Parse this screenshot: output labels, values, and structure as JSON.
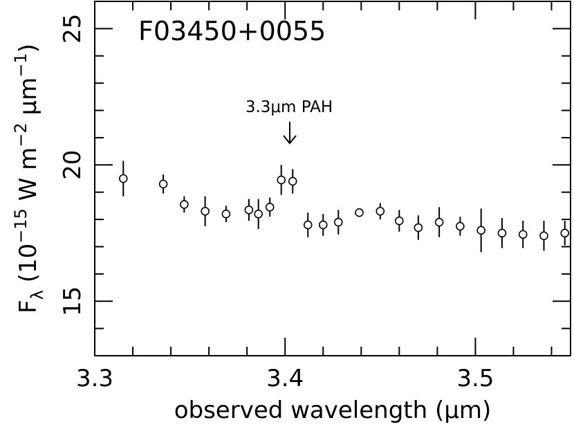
{
  "chart_data": {
    "type": "scatter",
    "title": "F03450+0055",
    "xlabel": "observed wavelength (μm)",
    "ylabel": "F_λ (10^-15 W m^-2 μm^-1)",
    "xlim": [
      3.3,
      3.55
    ],
    "ylim": [
      13,
      26
    ],
    "x_major_ticks": [
      3.3,
      3.4,
      3.5
    ],
    "x_tick_labels": [
      "3.3",
      "3.4",
      "3.5"
    ],
    "y_major_ticks": [
      15,
      20,
      25
    ],
    "y_tick_labels": [
      "15",
      "20",
      "25"
    ],
    "grid": false,
    "annotation": {
      "text": "3.3μm PAH",
      "x": 3.404,
      "y": 20.9
    },
    "points": [
      {
        "x": 3.315,
        "y": 19.5,
        "err": 0.65
      },
      {
        "x": 3.336,
        "y": 19.3,
        "err": 0.35
      },
      {
        "x": 3.347,
        "y": 18.55,
        "err": 0.3
      },
      {
        "x": 3.358,
        "y": 18.3,
        "err": 0.55
      },
      {
        "x": 3.369,
        "y": 18.2,
        "err": 0.3
      },
      {
        "x": 3.381,
        "y": 18.35,
        "err": 0.4
      },
      {
        "x": 3.386,
        "y": 18.2,
        "err": 0.55
      },
      {
        "x": 3.392,
        "y": 18.45,
        "err": 0.35
      },
      {
        "x": 3.398,
        "y": 19.45,
        "err": 0.55
      },
      {
        "x": 3.404,
        "y": 19.4,
        "err": 0.45
      },
      {
        "x": 3.412,
        "y": 17.8,
        "err": 0.45
      },
      {
        "x": 3.42,
        "y": 17.8,
        "err": 0.4
      },
      {
        "x": 3.428,
        "y": 17.9,
        "err": 0.45
      },
      {
        "x": 3.439,
        "y": 18.25,
        "err": 0.15
      },
      {
        "x": 3.45,
        "y": 18.3,
        "err": 0.3
      },
      {
        "x": 3.46,
        "y": 17.95,
        "err": 0.4
      },
      {
        "x": 3.47,
        "y": 17.7,
        "err": 0.45
      },
      {
        "x": 3.481,
        "y": 17.9,
        "err": 0.55
      },
      {
        "x": 3.492,
        "y": 17.75,
        "err": 0.35
      },
      {
        "x": 3.503,
        "y": 17.6,
        "err": 0.8
      },
      {
        "x": 3.514,
        "y": 17.5,
        "err": 0.55
      },
      {
        "x": 3.525,
        "y": 17.45,
        "err": 0.5
      },
      {
        "x": 3.536,
        "y": 17.4,
        "err": 0.55
      },
      {
        "x": 3.547,
        "y": 17.5,
        "err": 0.45
      }
    ]
  }
}
